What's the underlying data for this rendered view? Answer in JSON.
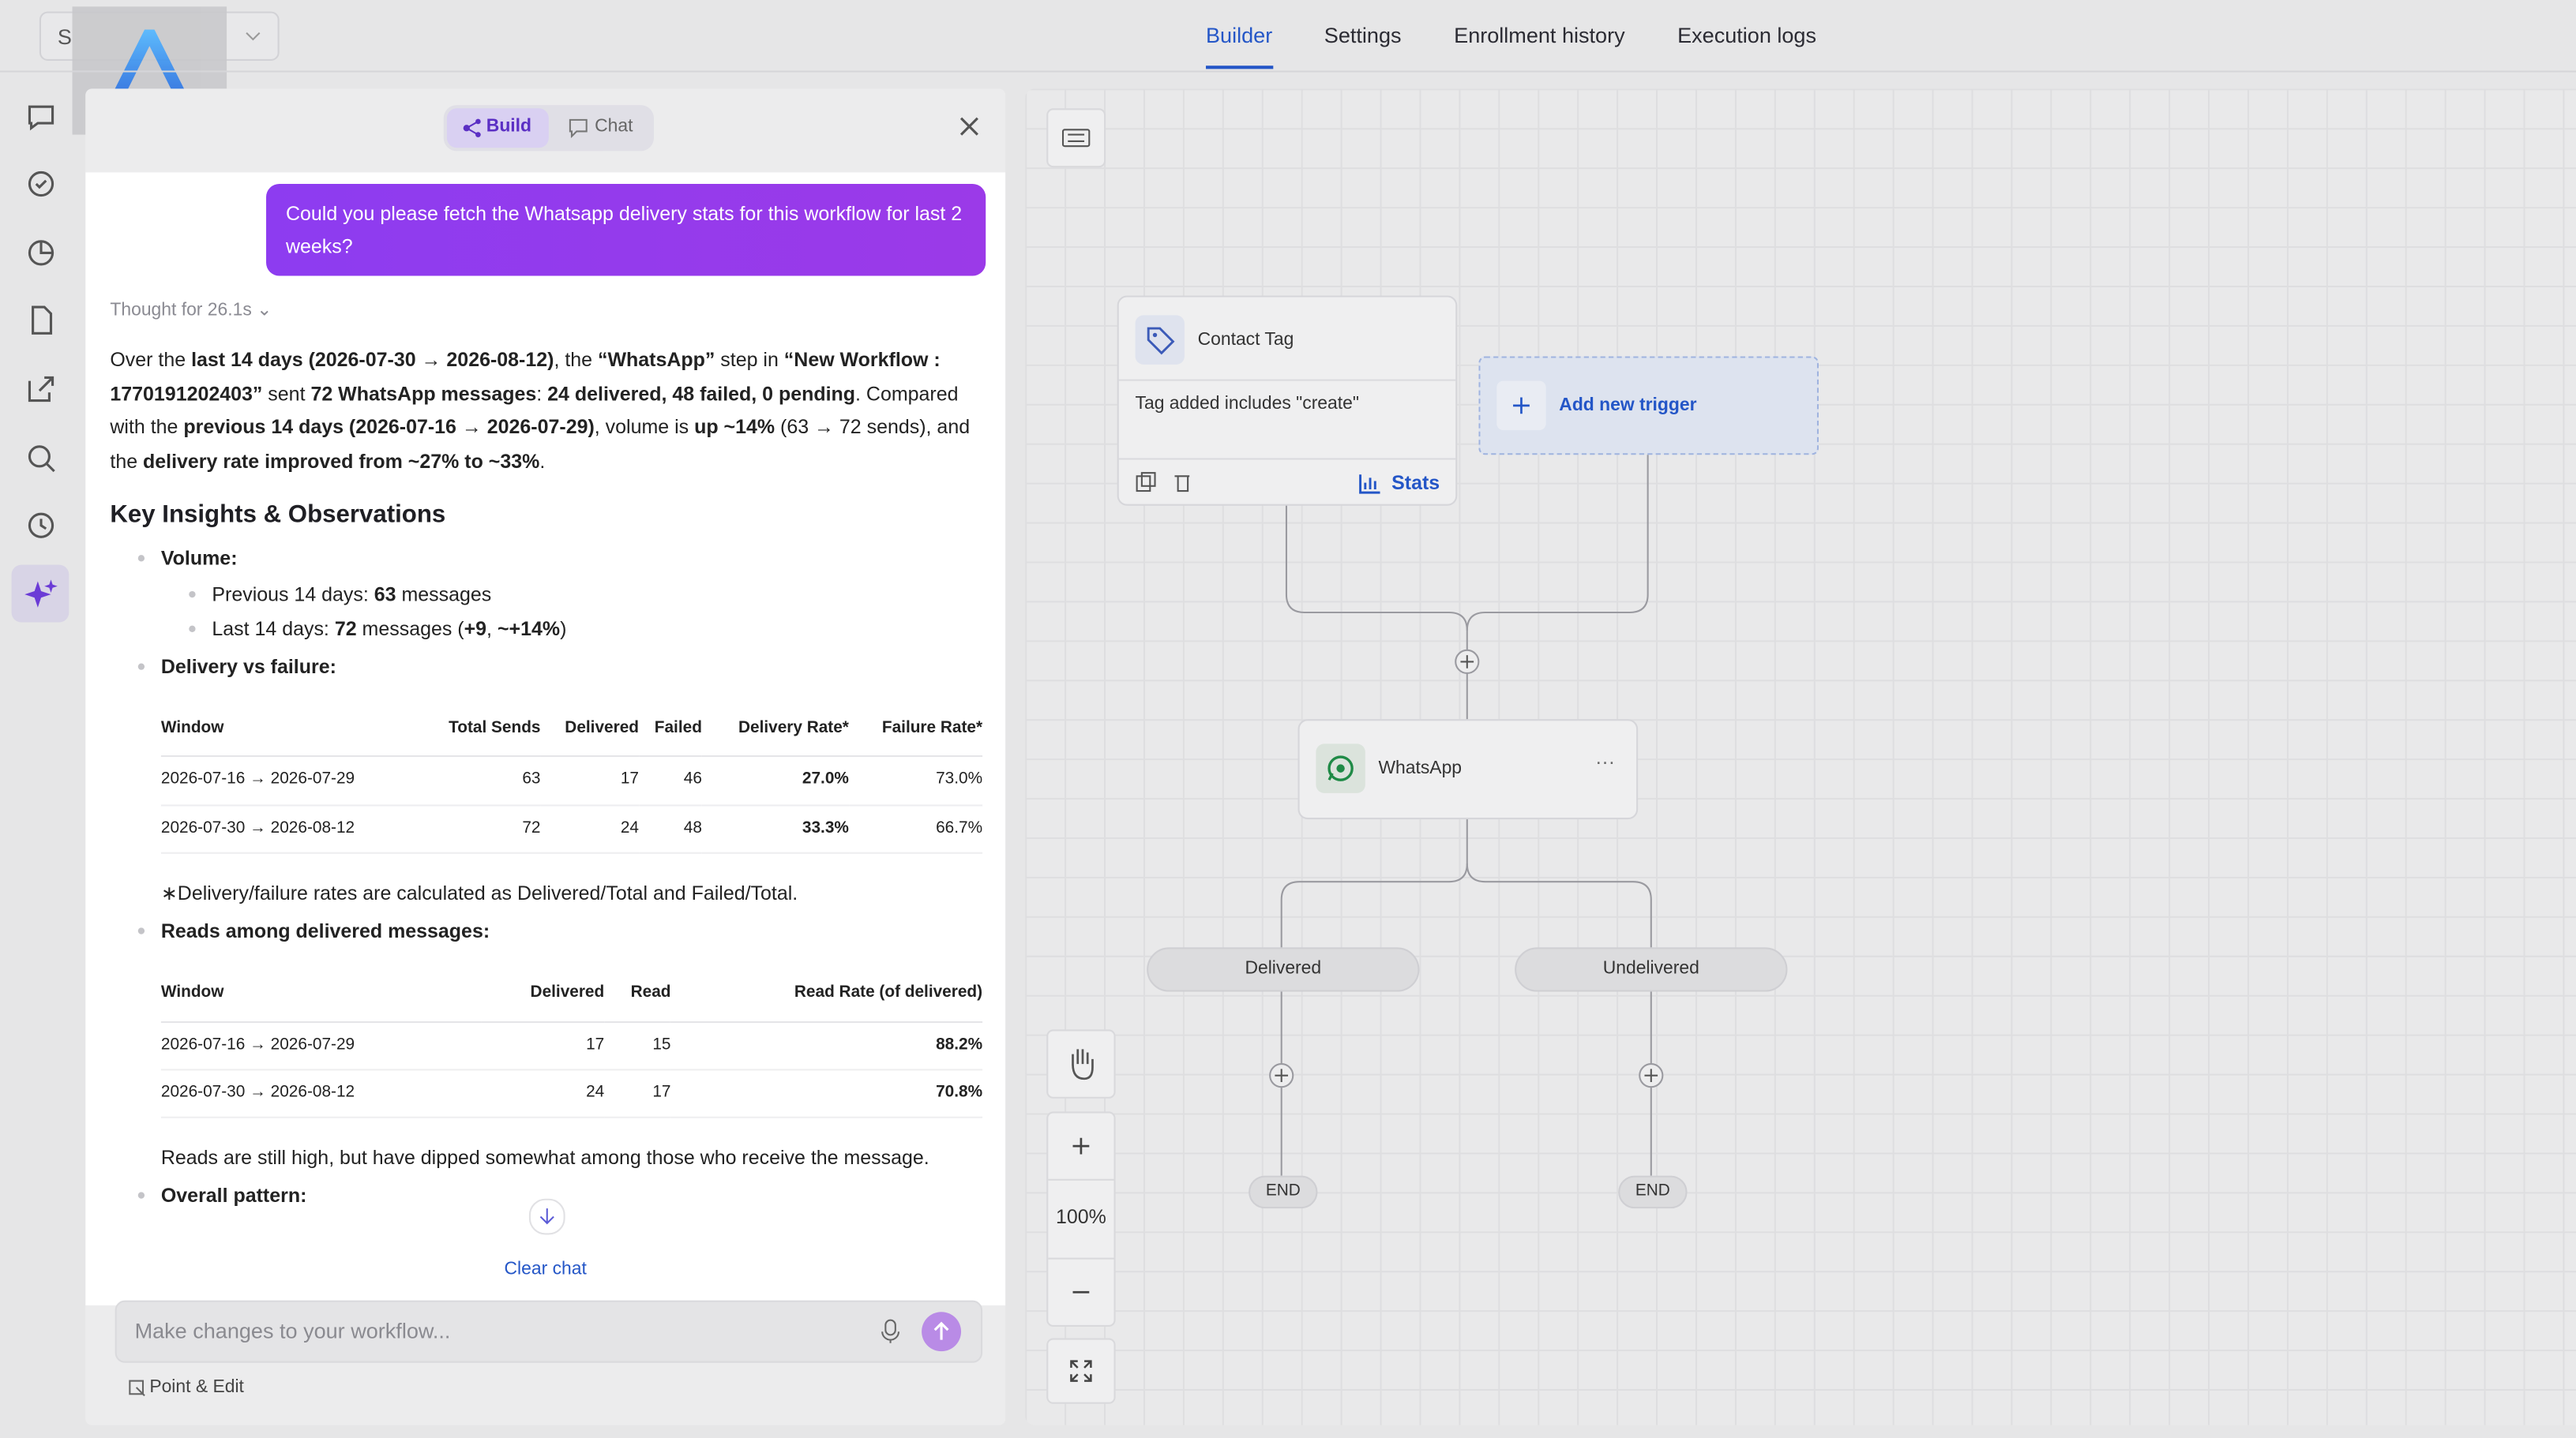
{
  "header": {
    "workspace_select": "S",
    "tabs": [
      "Builder",
      "Settings",
      "Enrollment history",
      "Execution logs"
    ],
    "active_tab": 0
  },
  "panel": {
    "mode_toggle": [
      "Build",
      "Chat"
    ],
    "user_message": "Could you please fetch the Whatsapp delivery stats for this workflow for last 2 weeks?",
    "thought": "Thought for 26.1s",
    "summary": [
      {
        "t": "Over the "
      },
      {
        "t": "last 14 days (2026-07-30 → 2026-08-12)",
        "b": true
      },
      {
        "t": ", the "
      },
      {
        "t": "“WhatsApp”",
        "b": true
      },
      {
        "t": " step in "
      },
      {
        "t": "“New Workflow : 1770191202403”",
        "b": true
      },
      {
        "t": " sent "
      },
      {
        "t": "72 WhatsApp messages",
        "b": true
      },
      {
        "t": ": "
      },
      {
        "t": "24 delivered, 48 failed, 0 pending",
        "b": true
      },
      {
        "t": ". Compared with the "
      },
      {
        "t": "previous 14 days (2026-07-16 → 2026-07-29)",
        "b": true
      },
      {
        "t": ", volume is "
      },
      {
        "t": "up ~14%",
        "b": true
      },
      {
        "t": " (63 → 72 sends), and the "
      },
      {
        "t": "delivery rate improved from ~27% to ~33%",
        "b": true
      },
      {
        "t": "."
      }
    ],
    "heading": "Key Insights & Observations",
    "bullets": [
      {
        "label": "Volume:",
        "items": [
          [
            {
              "t": "Previous 14 days: "
            },
            {
              "t": "63",
              "b": true
            },
            {
              "t": " messages"
            }
          ],
          [
            {
              "t": "Last 14 days: "
            },
            {
              "t": "72",
              "b": true
            },
            {
              "t": " messages ("
            },
            {
              "t": "+9",
              "b": true
            },
            {
              "t": ", "
            },
            {
              "t": "~+14%",
              "b": true
            },
            {
              "t": ")"
            }
          ]
        ]
      },
      {
        "label": "Delivery vs failure:",
        "table": {
          "headers": [
            "Window",
            "Total Sends",
            "Delivered",
            "Failed",
            "Delivery Rate*",
            "Failure Rate*"
          ],
          "bold_column": 4,
          "rows": [
            [
              "2026-07-16 → 2026-07-29",
              63,
              17,
              46,
              "27.0%",
              "73.0%"
            ],
            [
              "2026-07-30 → 2026-08-12",
              72,
              24,
              48,
              "33.3%",
              "66.7%"
            ]
          ]
        },
        "note": "∗Delivery/failure rates are calculated as Delivered/Total and Failed/Total."
      },
      {
        "label": "Reads among delivered messages:",
        "table": {
          "headers": [
            "Window",
            "Delivered",
            "Read",
            "Read Rate (of delivered)"
          ],
          "bold_column": 3,
          "rows": [
            [
              "2026-07-16 → 2026-07-29",
              17,
              15,
              "88.2%"
            ],
            [
              "2026-07-30 → 2026-08-12",
              24,
              17,
              "70.8%"
            ]
          ]
        },
        "note": "Reads are still high, but have dipped somewhat among those who receive the message."
      },
      {
        "label": "Overall pattern:"
      }
    ],
    "clear_chat": "Clear chat",
    "input_placeholder": "Make changes to your workflow...",
    "point_edit": "Point & Edit"
  },
  "canvas": {
    "trigger_node": {
      "title": "Contact Tag",
      "condition": "Tag added includes \"create\"",
      "stats": "Stats"
    },
    "add_trigger": "Add new trigger",
    "action_node": "WhatsApp",
    "branches": [
      "Delivered",
      "Undelivered"
    ],
    "end_labels": [
      "END",
      "END"
    ],
    "zoom": "100%"
  }
}
